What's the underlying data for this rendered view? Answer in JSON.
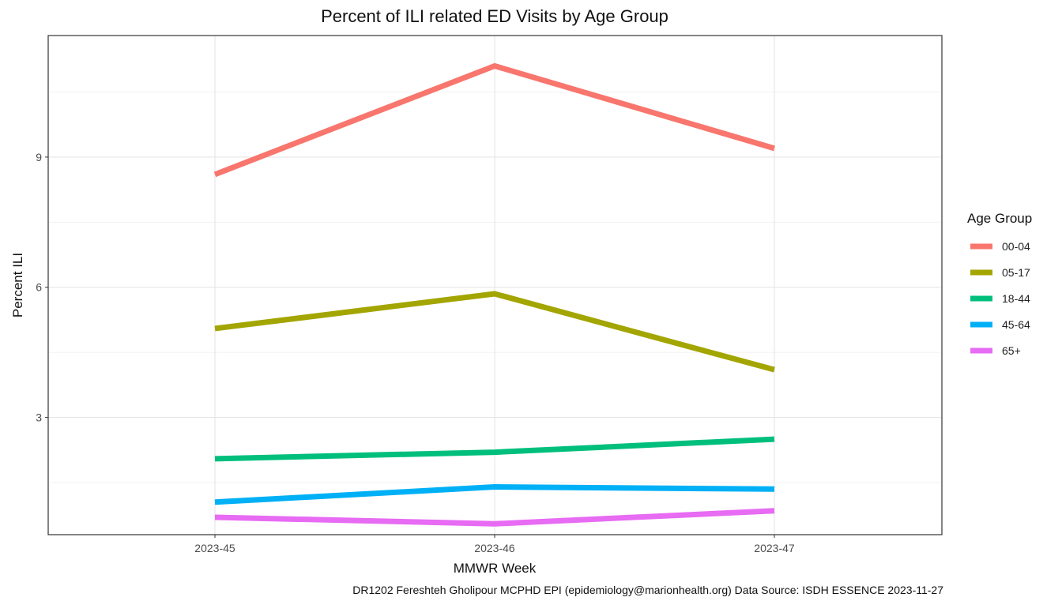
{
  "chart_data": {
    "type": "line",
    "title": "Percent of ILI related ED Visits by Age Group",
    "xlabel": "MMWR Week",
    "ylabel": "Percent ILI",
    "categories": [
      "2023-45",
      "2023-46",
      "2023-47"
    ],
    "yticks": [
      3,
      6,
      9
    ],
    "ylim": [
      0.3,
      11.8
    ],
    "grid": true,
    "legend": {
      "title": "Age Group",
      "position": "right"
    },
    "series": [
      {
        "name": "00-04",
        "color": "#F8766D",
        "values": [
          8.6,
          11.1,
          9.2
        ]
      },
      {
        "name": "05-17",
        "color": "#A3A500",
        "values": [
          5.05,
          5.85,
          4.1
        ]
      },
      {
        "name": "18-44",
        "color": "#00BF7D",
        "values": [
          2.05,
          2.2,
          2.5
        ]
      },
      {
        "name": "45-64",
        "color": "#00B0F6",
        "values": [
          1.05,
          1.4,
          1.35
        ]
      },
      {
        "name": "65+",
        "color": "#E76BF3",
        "values": [
          0.7,
          0.55,
          0.85
        ]
      }
    ],
    "caption": "DR1202 Fereshteh Gholipour MCPHD EPI (epidemiology@marionhealth.org) Data Source: ISDH ESSENCE 2023-11-27"
  }
}
